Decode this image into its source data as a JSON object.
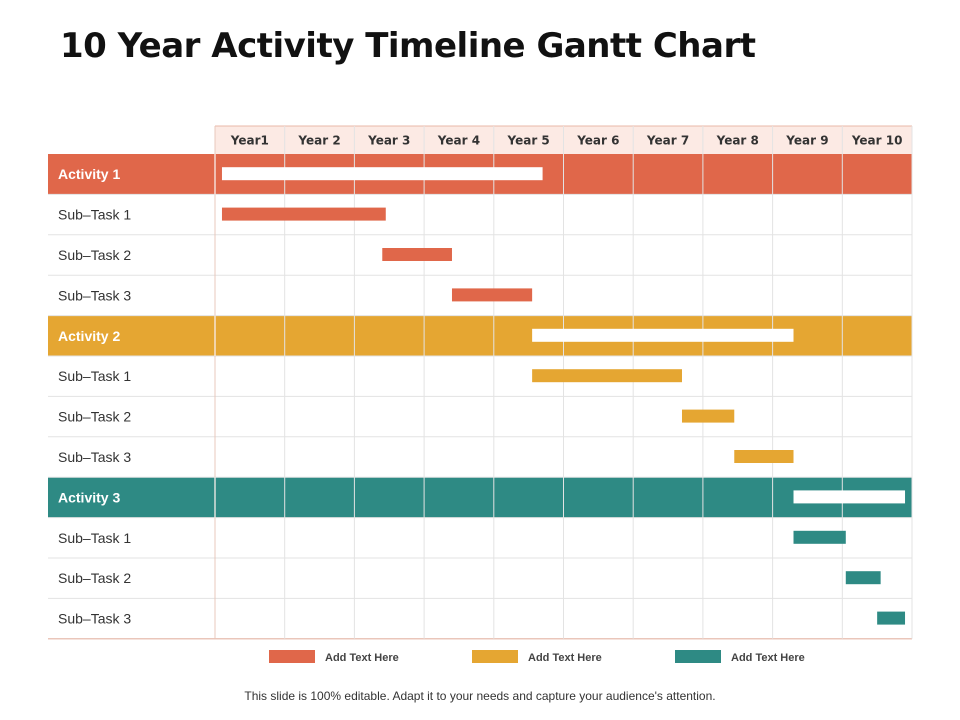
{
  "title": "10 Year Activity Timeline Gantt Chart",
  "footer": "This slide is 100% editable. Adapt it to your needs and capture your audience's attention.",
  "colors": {
    "activity_1": "#E0674A",
    "activity_2": "#E5A632",
    "activity_3": "#2E8A84",
    "header_bg": "#FCEAE4",
    "grid": "#E3E3E3"
  },
  "chart_data": {
    "type": "gantt",
    "x_unit": "year",
    "xlim": [
      0,
      10
    ],
    "columns": [
      "Year1",
      "Year 2",
      "Year 3",
      "Year 4",
      "Year 5",
      "Year 6",
      "Year 7",
      "Year 8",
      "Year 9",
      "Year 10"
    ],
    "groups": [
      {
        "label": "Activity 1",
        "color": "#E0674A",
        "span": [
          0.1,
          4.7
        ],
        "tasks": [
          {
            "label": "Sub–Task 1",
            "start": 0.1,
            "end": 2.45
          },
          {
            "label": "Sub–Task 2",
            "start": 2.4,
            "end": 3.4
          },
          {
            "label": "Sub–Task 3",
            "start": 3.4,
            "end": 4.55
          }
        ]
      },
      {
        "label": "Activity 2",
        "color": "#E5A632",
        "span": [
          4.55,
          8.3
        ],
        "tasks": [
          {
            "label": "Sub–Task 1",
            "start": 4.55,
            "end": 6.7
          },
          {
            "label": "Sub–Task 2",
            "start": 6.7,
            "end": 7.45
          },
          {
            "label": "Sub–Task 3",
            "start": 7.45,
            "end": 8.3
          }
        ]
      },
      {
        "label": "Activity 3",
        "color": "#2E8A84",
        "span": [
          8.3,
          9.9
        ],
        "tasks": [
          {
            "label": "Sub–Task 1",
            "start": 8.3,
            "end": 9.05
          },
          {
            "label": "Sub–Task 2",
            "start": 9.05,
            "end": 9.55
          },
          {
            "label": "Sub–Task 3",
            "start": 9.5,
            "end": 9.9
          }
        ]
      }
    ],
    "legend": [
      {
        "label": "Add Text Here",
        "color": "#E0674A"
      },
      {
        "label": "Add Text Here",
        "color": "#E5A632"
      },
      {
        "label": "Add Text Here",
        "color": "#2E8A84"
      }
    ]
  }
}
